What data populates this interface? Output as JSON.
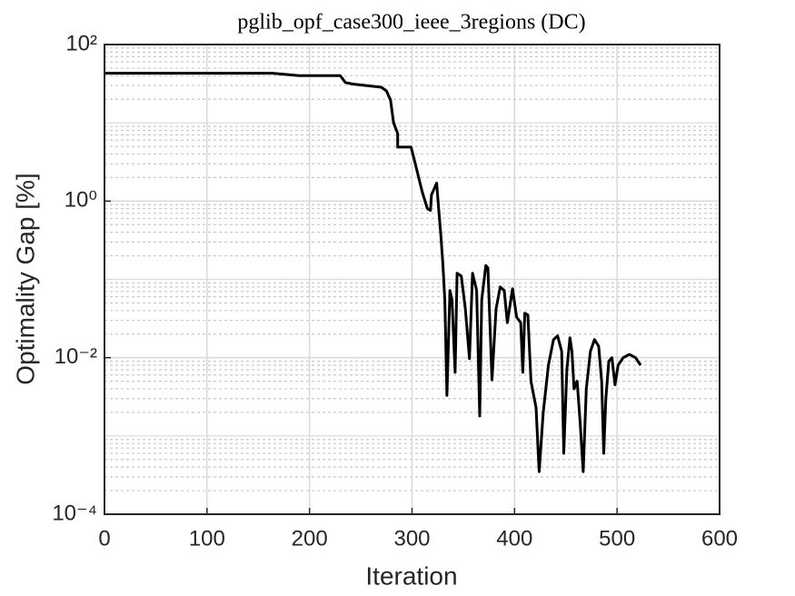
{
  "chart_data": {
    "type": "line",
    "title": "pglib_opf_case300_ieee_3regions (DC)",
    "x_label": "Iteration",
    "y_label": "Optimality Gap [%]",
    "log_scale_y": true,
    "grid": true,
    "minor_grid": true,
    "xlim": [
      0,
      600
    ],
    "xticks": [
      0,
      100,
      200,
      300,
      400,
      500,
      600
    ],
    "ylim": [
      0.0001,
      100
    ],
    "yticks": [
      {
        "value": 100,
        "label": "10²"
      },
      {
        "value": 1,
        "label": "10⁰"
      },
      {
        "value": 0.01,
        "label": "10⁻²"
      },
      {
        "value": 0.0001,
        "label": "10⁻⁴"
      }
    ],
    "series": [
      {
        "color": "#000000",
        "x": [
          0,
          164,
          190,
          230,
          235,
          244,
          270,
          275,
          279,
          282,
          286,
          286,
          299,
          301,
          310,
          315,
          318,
          319,
          324,
          326,
          328,
          330,
          332,
          334,
          337,
          339,
          342,
          344,
          348,
          352,
          356,
          359,
          363,
          366,
          368,
          372,
          374,
          378,
          382,
          386,
          390,
          393,
          398,
          402,
          406,
          408,
          410,
          413,
          416,
          421,
          424,
          428,
          433,
          438,
          442,
          446,
          448,
          451,
          454,
          456,
          458,
          461,
          464,
          467,
          470,
          474,
          478,
          482,
          485,
          487,
          489,
          492,
          495,
          498,
          501,
          506,
          512,
          518,
          523
        ],
        "values": [
          43,
          43,
          40,
          40,
          32.6,
          31,
          28.5,
          25.6,
          19.6,
          10,
          7.3,
          4.9,
          4.9,
          3.9,
          1.3,
          0.8,
          0.76,
          1.2,
          1.7,
          0.8,
          0.38,
          0.16,
          0.055,
          0.0033,
          0.072,
          0.055,
          0.0065,
          0.12,
          0.11,
          0.042,
          0.0097,
          0.12,
          0.072,
          0.0018,
          0.055,
          0.15,
          0.14,
          0.0052,
          0.042,
          0.08,
          0.072,
          0.028,
          0.076,
          0.033,
          0.028,
          0.0065,
          0.037,
          0.035,
          0.005,
          0.0023,
          0.00035,
          0.002,
          0.008,
          0.017,
          0.019,
          0.012,
          0.0006,
          0.007,
          0.018,
          0.012,
          0.004,
          0.005,
          0.0015,
          0.00035,
          0.004,
          0.012,
          0.017,
          0.014,
          0.005,
          0.0006,
          0.003,
          0.009,
          0.01,
          0.0045,
          0.008,
          0.01,
          0.011,
          0.01,
          0.008
        ]
      }
    ]
  }
}
